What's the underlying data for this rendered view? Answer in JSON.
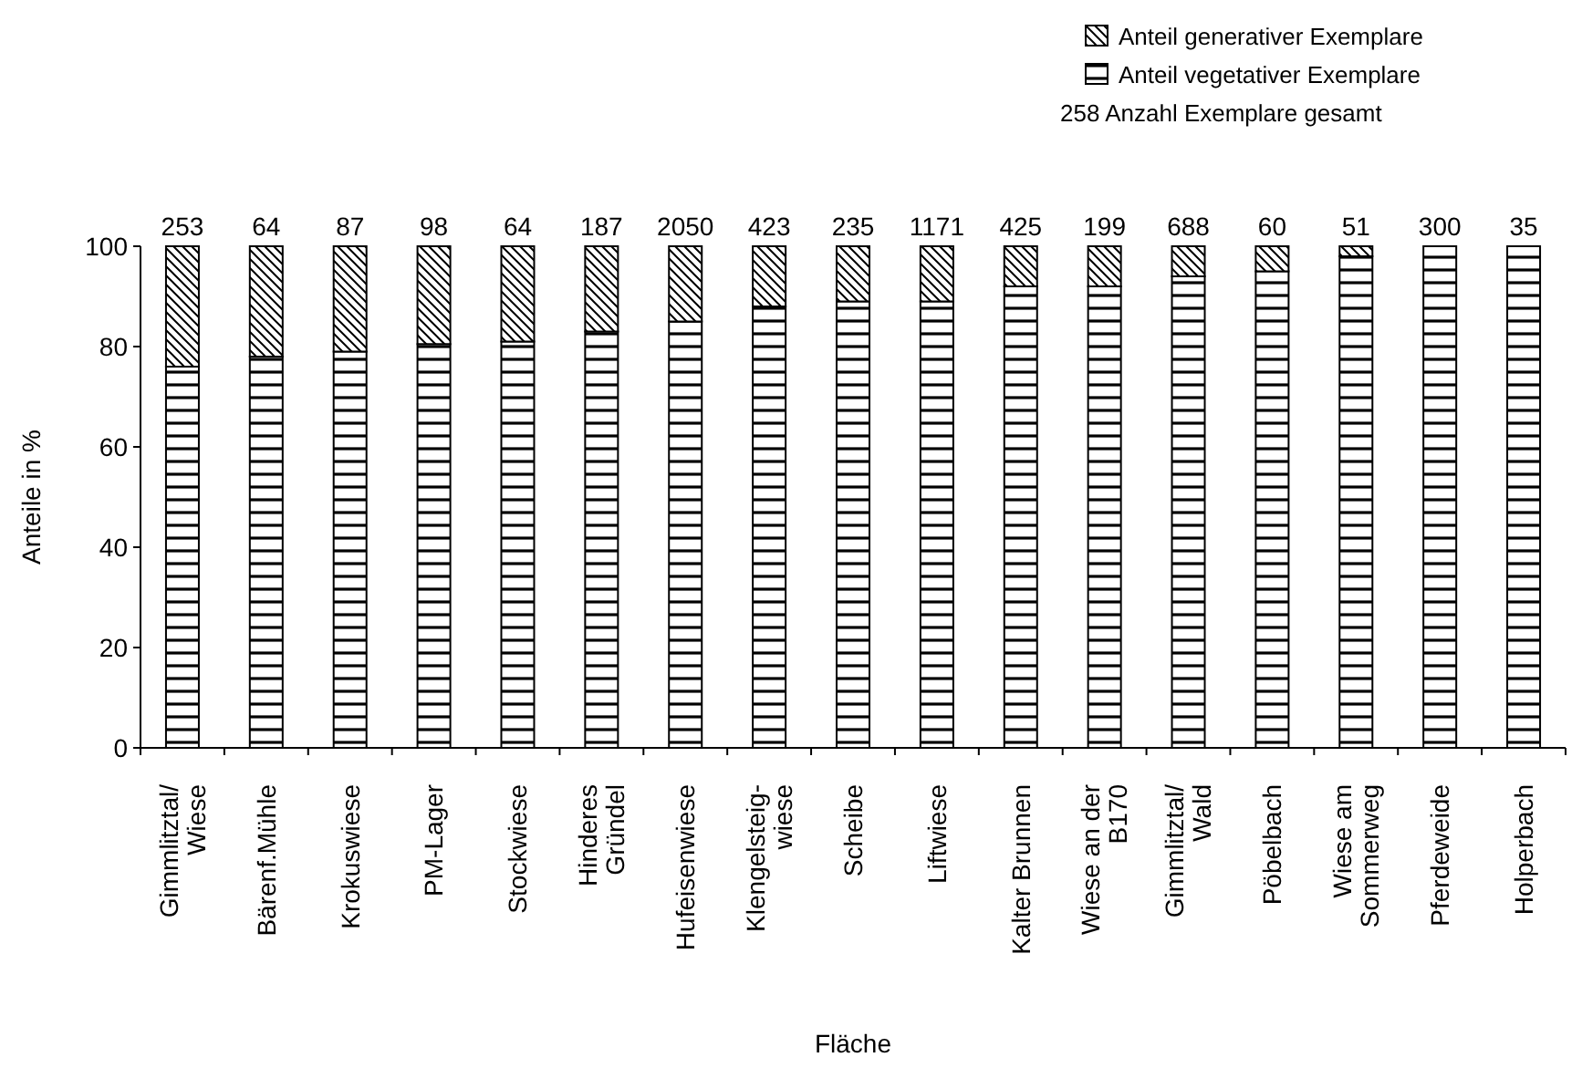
{
  "chart_data": {
    "type": "bar",
    "stacked": true,
    "xlabel": "Fläche",
    "ylabel": "Anteile in %",
    "categories": [
      "Gimmlitztal/\nWiese",
      "Bärenf.Mühle",
      "Krokuswiese",
      "PM-Lager",
      "Stockwiese",
      "Hinderes\nGründel",
      "Hufeisenwiese",
      "Klengelsteig-\nwiese",
      "Scheibe",
      "Liftwiese",
      "Kalter Brunnen",
      "Wiese an der\nB170",
      "Gimmlitztal/\nWald",
      "Pöbelbach",
      "Wiese am\nSommerweg",
      "Pferdeweide",
      "Holperbach"
    ],
    "series": [
      {
        "name": "Anteil vegetativer Exemplare",
        "color": "#000000",
        "values": [
          76,
          78,
          79,
          80.5,
          81,
          83,
          85,
          88,
          89,
          89,
          92,
          92,
          94,
          95,
          98,
          100,
          100
        ]
      },
      {
        "name": "Anteil generativer Exemplare",
        "color": "#000000",
        "values": [
          24,
          22,
          21,
          19.5,
          19,
          17,
          15,
          12,
          11,
          11,
          8,
          8,
          6,
          5,
          2,
          0,
          0
        ]
      }
    ],
    "ylim": [
      0,
      100
    ],
    "yticks": [
      0,
      20,
      40,
      60,
      80,
      100
    ],
    "grid": false,
    "legend": "top right",
    "annotations": [
      "258 Anzahl Exemplare gesamt",
      {
        "text": "253",
        "x": "Gimmlitztal/\nWiese",
        "y": 100
      },
      {
        "text": "64",
        "x": "Bärenf.Mühle",
        "y": 100
      },
      {
        "text": "87",
        "x": "Krokuswiese",
        "y": 100
      },
      {
        "text": "98",
        "x": "PM-Lager",
        "y": 100
      },
      {
        "text": "64",
        "x": "Stockwiese",
        "y": 100
      },
      {
        "text": "187",
        "x": "Hinderes\nGründel",
        "y": 100
      },
      {
        "text": "2050",
        "x": "Hufeisenwiese",
        "y": 100
      },
      {
        "text": "423",
        "x": "Klengelsteig-\nwiese",
        "y": 100
      },
      {
        "text": "235",
        "x": "Scheibe",
        "y": 100
      },
      {
        "text": "1171",
        "x": "Liftwiese",
        "y": 100
      },
      {
        "text": "425",
        "x": "Kalter Brunnen",
        "y": 100
      },
      {
        "text": "199",
        "x": "Wiese an der\nB170",
        "y": 100
      },
      {
        "text": "688",
        "x": "Gimmlitztal/\nWald",
        "y": 100
      },
      {
        "text": "60",
        "x": "Pöbelbach",
        "y": 100
      },
      {
        "text": "51",
        "x": "Wiese am\nSommerweg",
        "y": 100
      },
      {
        "text": "300",
        "x": "Pferdeweide",
        "y": 100
      },
      {
        "text": "35",
        "x": "Holperbach",
        "y": 100
      }
    ]
  }
}
